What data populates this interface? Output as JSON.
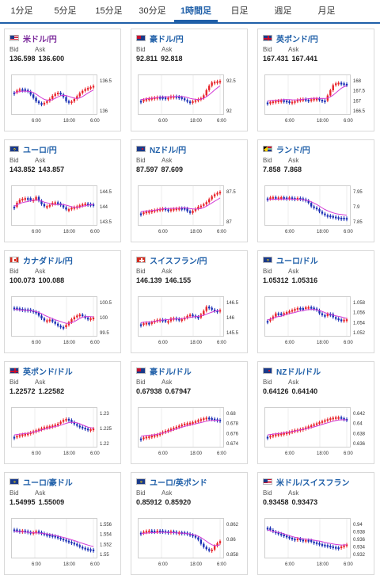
{
  "tabs": [
    {
      "label": "1分足",
      "active": false
    },
    {
      "label": "5分足",
      "active": false
    },
    {
      "label": "15分足",
      "active": false
    },
    {
      "label": "30分足",
      "active": false
    },
    {
      "label": "1時間足",
      "active": true
    },
    {
      "label": "日足",
      "active": false
    },
    {
      "label": "週足",
      "active": false
    },
    {
      "label": "月足",
      "active": false
    }
  ],
  "labels": {
    "bid": "Bid",
    "ask": "Ask"
  },
  "colors": {
    "up": "#e8242b",
    "down": "#1a2fb5",
    "ma": "#d23ad6",
    "accent": "#1f5fa8"
  },
  "cards": [
    {
      "pair": "米ドル/円",
      "bid": "136.598",
      "ask": "136.600",
      "flag": "us",
      "purple": true,
      "yticks": [
        "136.5",
        "136"
      ],
      "xticks": [
        "6:00",
        "18:00",
        "6:00"
      ]
    },
    {
      "pair": "豪ドル/円",
      "bid": "92.811",
      "ask": "92.818",
      "flag": "au",
      "yticks": [
        "92.5",
        "92"
      ],
      "xticks": [
        "6:00",
        "18:00",
        "6:00"
      ]
    },
    {
      "pair": "英ポンド/円",
      "bid": "167.431",
      "ask": "167.441",
      "flag": "gb",
      "yticks": [
        "168",
        "167.5",
        "167",
        "166.5"
      ],
      "xticks": [
        "6:00",
        "18:00",
        "6:00"
      ]
    },
    {
      "pair": "ユーロ/円",
      "bid": "143.852",
      "ask": "143.857",
      "flag": "eu",
      "yticks": [
        "144.5",
        "144",
        "143.5"
      ],
      "xticks": [
        "6:00",
        "18:00",
        "6:00"
      ]
    },
    {
      "pair": "NZドル/円",
      "bid": "87.597",
      "ask": "87.609",
      "flag": "nz",
      "yticks": [
        "87.5",
        "87"
      ],
      "xticks": [
        "6:00",
        "18:00",
        "6:00"
      ]
    },
    {
      "pair": "ランド/円",
      "bid": "7.858",
      "ask": "7.868",
      "flag": "za",
      "yticks": [
        "7.95",
        "7.9",
        "7.85"
      ],
      "xticks": [
        "6:00",
        "18:00",
        "6:00"
      ]
    },
    {
      "pair": "カナダドル/円",
      "bid": "100.073",
      "ask": "100.088",
      "flag": "ca",
      "yticks": [
        "100.5",
        "100",
        "99.5"
      ],
      "xticks": [
        "6:00",
        "18:00",
        "6:00"
      ]
    },
    {
      "pair": "スイスフラン/円",
      "bid": "146.139",
      "ask": "146.155",
      "flag": "ch",
      "yticks": [
        "146.5",
        "146",
        "145.5"
      ],
      "xticks": [
        "6:00",
        "18:00",
        "6:00"
      ]
    },
    {
      "pair": "ユーロ/ドル",
      "bid": "1.05312",
      "ask": "1.05316",
      "flag": "eu",
      "yticks": [
        "1.058",
        "1.056",
        "1.054",
        "1.052"
      ],
      "xticks": [
        "6:00",
        "18:00",
        "6:00"
      ]
    },
    {
      "pair": "英ポンド/ドル",
      "bid": "1.22572",
      "ask": "1.22582",
      "flag": "gb",
      "yticks": [
        "1.23",
        "1.225",
        "1.22"
      ],
      "xticks": [
        "6:00",
        "18:00",
        "6:00"
      ]
    },
    {
      "pair": "豪ドル/ドル",
      "bid": "0.67938",
      "ask": "0.67947",
      "flag": "au",
      "yticks": [
        "0.68",
        "0.678",
        "0.676",
        "0.674"
      ],
      "xticks": [
        "6:00",
        "18:00",
        "6:00"
      ]
    },
    {
      "pair": "NZドル/ドル",
      "bid": "0.64126",
      "ask": "0.64140",
      "flag": "nz",
      "yticks": [
        "0.642",
        "0.64",
        "0.638",
        "0.636"
      ],
      "xticks": [
        "6:00",
        "18:00",
        "6:00"
      ]
    },
    {
      "pair": "ユーロ/豪ドル",
      "bid": "1.54995",
      "ask": "1.55009",
      "flag": "eu",
      "yticks": [
        "1.556",
        "1.554",
        "1.552",
        "1.55"
      ],
      "xticks": [
        "6:00",
        "18:00",
        "6:00"
      ]
    },
    {
      "pair": "ユーロ/英ポンド",
      "bid": "0.85912",
      "ask": "0.85920",
      "flag": "eu",
      "yticks": [
        "0.862",
        "0.86",
        "0.858"
      ],
      "xticks": [
        "6:00",
        "18:00",
        "6:00"
      ]
    },
    {
      "pair": "米ドル/スイスフラン",
      "bid": "0.93458",
      "ask": "0.93473",
      "flag": "us",
      "yticks": [
        "0.94",
        "0.938",
        "0.936",
        "0.934",
        "0.932"
      ],
      "xticks": [
        "6:00",
        "18:00",
        "6:00"
      ]
    }
  ]
}
